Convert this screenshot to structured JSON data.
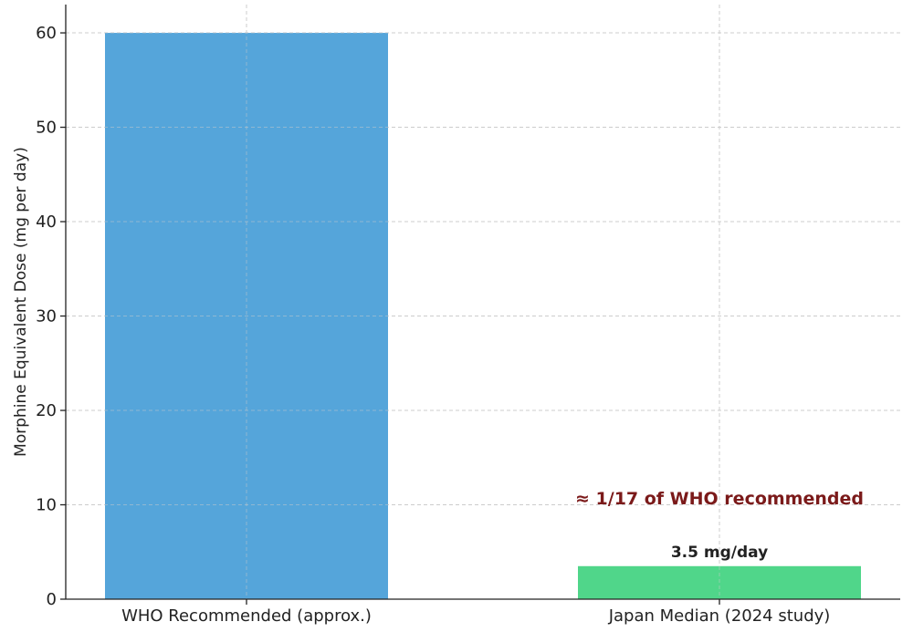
{
  "chart_data": {
    "type": "bar",
    "categories": [
      "WHO Recommended (approx.)",
      "Japan Median (2024 study)"
    ],
    "values": [
      60,
      3.5
    ],
    "colors": [
      "#55a5da",
      "#50d68a"
    ],
    "title": "",
    "xlabel": "",
    "ylabel": "Morphine Equivalent Dose (mg per day)",
    "ylim": [
      0,
      63
    ],
    "yticks": [
      0,
      10,
      20,
      30,
      40,
      50,
      60
    ],
    "grid": true,
    "data_labels": [
      "",
      "3.5 mg/day"
    ],
    "annotation": {
      "text": "≈ 1/17 of WHO recommended",
      "x_category": "Japan Median (2024 study)",
      "y": 11,
      "color": "#7b1a1a"
    }
  }
}
